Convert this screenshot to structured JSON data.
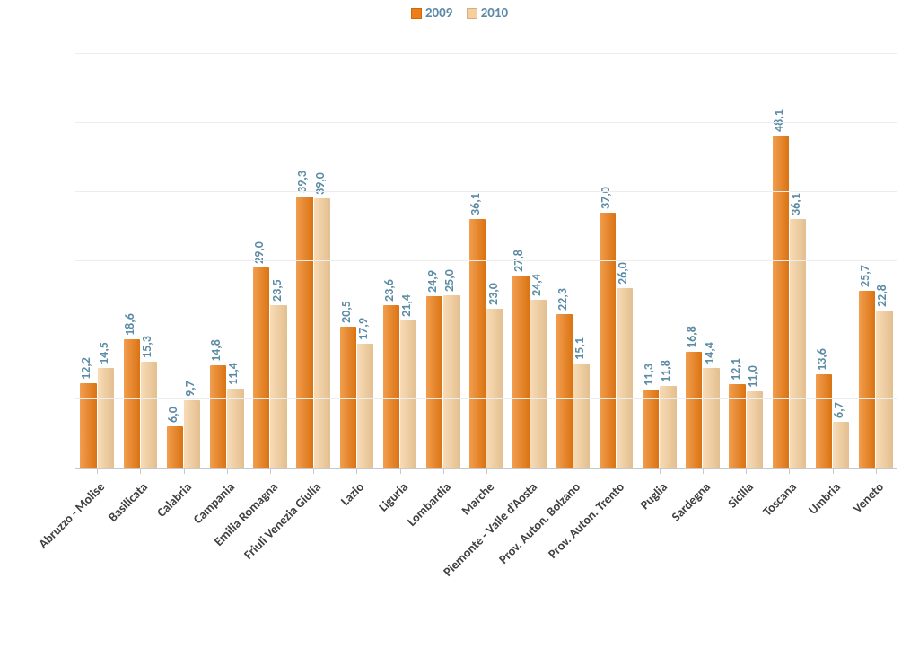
{
  "chart": {
    "type": "bar",
    "background_color": "#ffffff",
    "grid_color": "#ededed",
    "axis_color": "#c9c9c9",
    "value_label_color": "#5b8ba5",
    "value_label_fontsize": 14,
    "category_label_fontsize": 14,
    "category_label_rotate_deg": -45,
    "y_max": 60,
    "y_step": 10,
    "legend": [
      {
        "label": "2009",
        "color": "#ed7d14"
      },
      {
        "label": "2010",
        "color": "#f6cf9c"
      }
    ],
    "series_colors": [
      "#ed7d14",
      "#f6cf9c"
    ],
    "categories": [
      "Abruzzo - Molise",
      "Basilicata",
      "Calabria",
      "Campania",
      "Emilia Romagna",
      "Friuli Venezia Giulia",
      "Lazio",
      "Liguria",
      "Lombardia",
      "Marche",
      "Piemonte - Valle d'Aosta",
      "Prov. Auton. Bolzano",
      "Prov. Auton. Trento",
      "Puglia",
      "Sardegna",
      "Sicilia",
      "Toscana",
      "Umbria",
      "Veneto"
    ],
    "values_2009": [
      "12,2",
      "18,6",
      "6,0",
      "14,8",
      "29,0",
      "39,3",
      "20,5",
      "23,6",
      "24,9",
      "36,1",
      "27,8",
      "22,3",
      "37,0",
      "11,3",
      "16,8",
      "12,1",
      "48,1",
      "13,6",
      "25,7"
    ],
    "values_2010": [
      "14,5",
      "15,3",
      "9,7",
      "11,4",
      "23,5",
      "39,0",
      "17,9",
      "21,4",
      "25,0",
      "23,0",
      "24,4",
      "15,1",
      "26,0",
      "11,8",
      "14,4",
      "11,0",
      "36,1",
      "6,7",
      "22,8"
    ]
  }
}
